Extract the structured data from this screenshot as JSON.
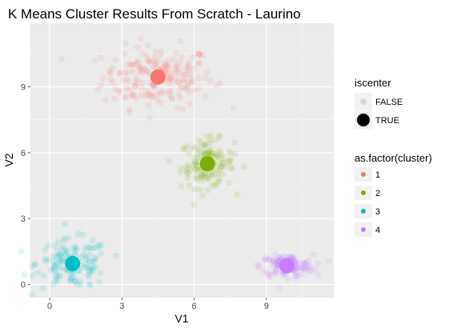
{
  "chart_data": {
    "type": "scatter",
    "title": "K Means Cluster Results From Scratch - Laurino",
    "xlabel": "V1",
    "ylabel": "V2",
    "xlim": [
      -0.8,
      11.8
    ],
    "ylim": [
      -0.6,
      11.9
    ],
    "x_ticks": [
      0,
      3,
      6,
      9
    ],
    "y_ticks": [
      0,
      3,
      6,
      9
    ],
    "background": "#ebebeb",
    "grid": true,
    "legends": [
      {
        "title": "iscenter",
        "entries": [
          {
            "label": "FALSE",
            "marker": "small-faint"
          },
          {
            "label": "TRUE",
            "marker": "large-solid"
          }
        ]
      },
      {
        "title": "as.factor(cluster)",
        "entries": [
          {
            "label": "1",
            "color": "#f8766d"
          },
          {
            "label": "2",
            "color": "#7cae00"
          },
          {
            "label": "3",
            "color": "#00bfc4"
          },
          {
            "label": "4",
            "color": "#c77cff"
          }
        ]
      }
    ],
    "clusters": [
      {
        "cluster": "1",
        "color": "#f8766d",
        "center": [
          4.5,
          9.45
        ],
        "spread": [
          1.15,
          0.7
        ],
        "n": 200
      },
      {
        "cluster": "2",
        "color": "#7cae00",
        "center": [
          6.55,
          5.5
        ],
        "spread": [
          0.55,
          0.55
        ],
        "n": 150
      },
      {
        "cluster": "3",
        "color": "#00bfc4",
        "center": [
          0.95,
          0.95
        ],
        "spread": [
          0.75,
          0.55
        ],
        "n": 150
      },
      {
        "cluster": "4",
        "color": "#c77cff",
        "center": [
          9.85,
          0.85
        ],
        "spread": [
          0.55,
          0.25
        ],
        "n": 150
      }
    ]
  }
}
